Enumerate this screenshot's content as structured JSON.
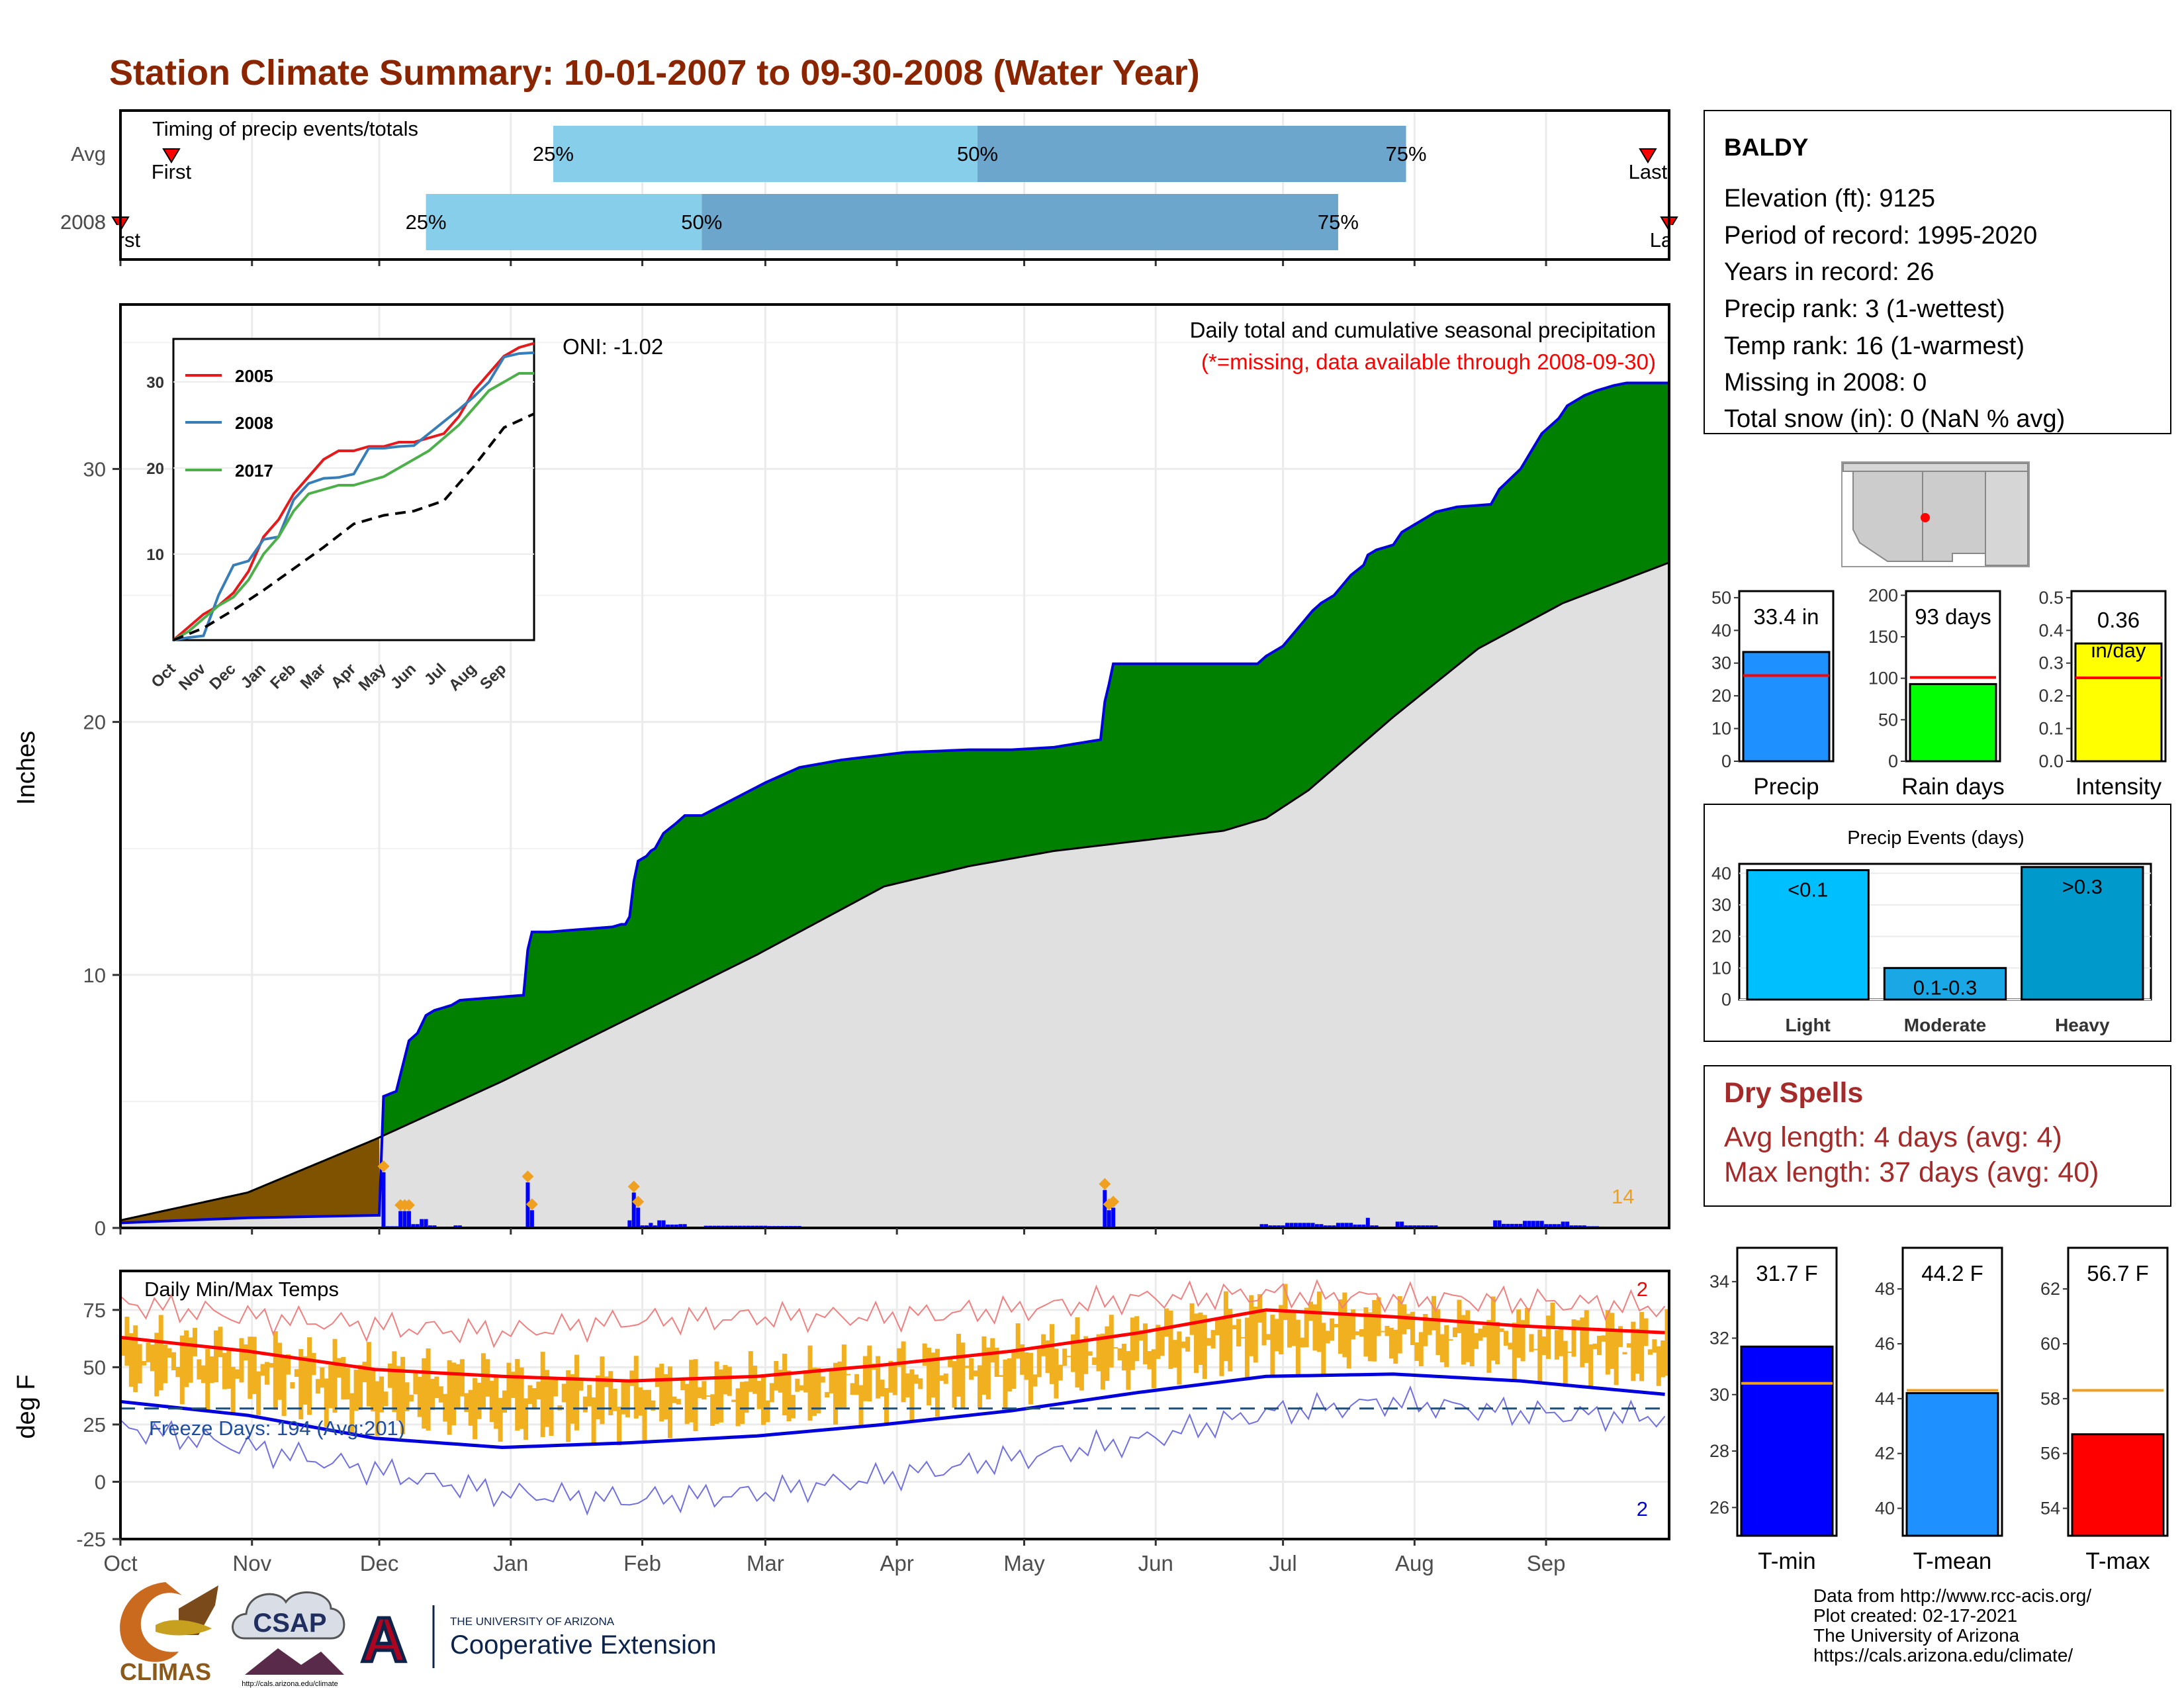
{
  "title": "Station Climate Summary: 10-01-2007 to 09-30-2008 (Water Year)",
  "colors": {
    "title": "#8B2500",
    "green_fill": "#008000",
    "brown_fill": "#7F5200",
    "avg_fill": "#E0E0E0",
    "blue_line": "#0000DD",
    "orange": "#F0B020",
    "red": "#FF0000",
    "light_blue": "#87CEEB",
    "steel_blue": "#6CA6CD",
    "precip_bar": "#1E90FF",
    "rain_bar": "#00FF00",
    "intensity_bar": "#FFFF00",
    "light_bar": "#00BFFF",
    "moderate_bar": "#1AA7E6",
    "heavy_bar": "#0099CC",
    "dry_spells": "#A52A2A"
  },
  "timing": {
    "label": "Timing of precip events/totals",
    "rows": [
      {
        "name": "Avg",
        "first": "First",
        "last": "Last",
        "p25": "25%",
        "p50": "50%",
        "p75": "75%",
        "first_day": 12,
        "q25_day": 102,
        "q50_day": 202,
        "q75_day": 303,
        "last_day": 360
      },
      {
        "name": "2008",
        "first": "First",
        "last": "Last",
        "p25": "25%",
        "p50": "50%",
        "p75": "75%",
        "first_day": 0,
        "q25_day": 72,
        "q50_day": 137,
        "q75_day": 287,
        "last_day": 365
      }
    ]
  },
  "station": {
    "name": "BALDY",
    "lines": [
      "Elevation (ft): 9125",
      "Period of record: 1995-2020",
      "Years in record: 26",
      "Precip rank: 3 (1-wettest)",
      "Temp rank: 16 (1-warmest)",
      "Missing in 2008: 0",
      "Total snow (in): 0 (NaN % avg)"
    ]
  },
  "months": [
    "Oct",
    "Nov",
    "Dec",
    "Jan",
    "Feb",
    "Mar",
    "Apr",
    "May",
    "Jun",
    "Jul",
    "Aug",
    "Sep"
  ],
  "precip_panel": {
    "ylabel": "Inches",
    "yticks": [
      0,
      10,
      20,
      30
    ],
    "ylim": [
      0,
      36.5
    ],
    "header1": "Daily total and cumulative seasonal precipitation",
    "header2": "(*=missing, data available through 2008-09-30)",
    "oni": "ONI: -1.02",
    "extreme_count": "14"
  },
  "inset": {
    "yticks": [
      10,
      20,
      30
    ],
    "ylim": [
      0,
      35
    ],
    "xticks": [
      "Oct",
      "Nov",
      "Dec",
      "Jan",
      "Feb",
      "Mar",
      "Apr",
      "May",
      "Jun",
      "Jul",
      "Aug",
      "Sep"
    ],
    "legend": [
      "2005",
      "2008",
      "2017"
    ]
  },
  "temp_panel": {
    "ylabel": "deg F",
    "yticks": [
      -25,
      0,
      25,
      50,
      75
    ],
    "ylim": [
      -25,
      92
    ],
    "title": "Daily Min/Max Temps",
    "freeze": "Freeze Days: 194 (Avg:201)",
    "freeze_line": 32,
    "record_high_count": "2",
    "record_low_count": "2"
  },
  "precip_bars": {
    "bars": [
      {
        "label": "Precip",
        "value_text": "33.4 in",
        "yticks": [
          0,
          10,
          20,
          30,
          40,
          50
        ],
        "ylim": [
          0,
          52
        ],
        "value": 33.4,
        "avg": 26.2
      },
      {
        "label": "Rain days",
        "value_text": "93 days",
        "yticks": [
          0,
          50,
          100,
          150,
          200
        ],
        "ylim": [
          0,
          205
        ],
        "value": 93,
        "avg": 101
      },
      {
        "label": "Intensity",
        "value_text": "0.36 in/day",
        "yticks": [
          0.0,
          0.1,
          0.2,
          0.3,
          0.4,
          0.5
        ],
        "ylim": [
          0,
          0.52
        ],
        "value": 0.36,
        "avg": 0.255
      }
    ]
  },
  "events": {
    "title": "Precip Events (days)",
    "yticks": [
      0,
      10,
      20,
      30,
      40
    ],
    "ylim": [
      0,
      43
    ],
    "categories": [
      "Light",
      "Moderate",
      "Heavy"
    ],
    "bar_labels": [
      "<0.1",
      "0.1-0.3",
      ">0.3"
    ],
    "values": [
      41,
      10,
      42
    ]
  },
  "dry_spells": {
    "title": "Dry Spells",
    "avg": "Avg length: 4 days (avg: 4)",
    "max": "Max length: 37 days (avg: 40)"
  },
  "temp_bars": {
    "bars": [
      {
        "label": "T-min",
        "value_text": "31.7 F",
        "yticks": [
          26,
          28,
          30,
          32,
          34
        ],
        "ylim": [
          25,
          35.2
        ],
        "value": 31.7,
        "avg": 30.4
      },
      {
        "label": "T-mean",
        "value_text": "44.2 F",
        "yticks": [
          40,
          42,
          44,
          46,
          48
        ],
        "ylim": [
          39,
          49.5
        ],
        "value": 44.2,
        "avg": 44.3
      },
      {
        "label": "T-max",
        "value_text": "56.7 F",
        "yticks": [
          54,
          56,
          58,
          60,
          62
        ],
        "ylim": [
          53,
          63.5
        ],
        "value": 56.7,
        "avg": 58.3
      }
    ]
  },
  "logos": {
    "climas": "CLIMAS",
    "csap": "CSAP",
    "csap_url": "http://cals.arizona.edu/climate",
    "ua_small": "THE UNIVERSITY OF ARIZONA",
    "ua_big": "Cooperative Extension"
  },
  "footer": [
    "Data from http://www.rcc-acis.org/",
    "Plot created: 02-17-2021",
    "The University of Arizona",
    "https://cals.arizona.edu/climate/"
  ],
  "chart_data": [
    {
      "type": "area",
      "title": "Daily total and cumulative seasonal precipitation",
      "ylabel": "Inches",
      "ylim": [
        0,
        36.5
      ],
      "x_unit": "day of water year (Oct 1 = 0)",
      "series": [
        {
          "name": "",
          "x": [
            0,
            30,
            61,
            62,
            65,
            68,
            70,
            72,
            74,
            76,
            78,
            80,
            95,
            96,
            97,
            98,
            99,
            101,
            116,
            118,
            119,
            120,
            121,
            122,
            124,
            125,
            126,
            127,
            128,
            131,
            133,
            135,
            136,
            137,
            152,
            160,
            170,
            185,
            200,
            210,
            220,
            231,
            232,
            233,
            234,
            268,
            270,
            274,
            279,
            281,
            283,
            286,
            288,
            290,
            293,
            294,
            296,
            300,
            302,
            310,
            315,
            323,
            325,
            330,
            335,
            339,
            341,
            345,
            348,
            350,
            352,
            355,
            358,
            365
          ],
          "y": [
            0.2,
            0.4,
            0.5,
            5.2,
            5.4,
            7.4,
            7.7,
            8.4,
            8.6,
            8.7,
            8.8,
            9.0,
            9.2,
            11.0,
            11.7,
            11.7,
            11.7,
            11.7,
            11.9,
            12.0,
            12.0,
            12.3,
            13.7,
            14.5,
            14.7,
            14.9,
            15.0,
            15.3,
            15.6,
            16.0,
            16.3,
            16.3,
            16.3,
            16.3,
            17.6,
            18.2,
            18.5,
            18.8,
            18.9,
            18.9,
            19.0,
            19.3,
            20.8,
            21.5,
            22.3,
            22.3,
            22.6,
            23.0,
            24.0,
            24.4,
            24.7,
            25.0,
            25.4,
            25.8,
            26.2,
            26.6,
            26.8,
            27.0,
            27.5,
            28.3,
            28.5,
            28.6,
            29.2,
            30.0,
            31.4,
            32.0,
            32.5,
            32.9,
            33.1,
            33.2,
            33.3,
            33.4,
            33.4,
            33.4
          ]
        },
        {
          "name": "",
          "x": [
            0,
            30,
            60,
            90,
            120,
            150,
            180,
            200,
            220,
            240,
            260,
            270,
            280,
            300,
            320,
            340,
            365
          ],
          "y": [
            0.3,
            1.4,
            3.5,
            5.8,
            8.3,
            10.8,
            13.5,
            14.3,
            14.9,
            15.3,
            15.7,
            16.2,
            17.3,
            20.2,
            22.9,
            24.7,
            26.3
          ]
        }
      ]
    },
    {
      "type": "line",
      "title": "",
      "ylim": [
        0,
        35
      ],
      "x_unit": "month index (Oct = 0)",
      "series": [
        {
          "name": "2005",
          "x": [
            0,
            0.5,
            1,
            1.5,
            2,
            2.5,
            3,
            3.5,
            4,
            4.5,
            5,
            5.5,
            6,
            6.5,
            7,
            7.5,
            8,
            8.5,
            9,
            9.5,
            10,
            10.5,
            11,
            11.5,
            12
          ],
          "y": [
            0,
            1.5,
            3,
            4,
            5.5,
            8,
            12,
            14,
            17,
            19,
            21,
            22,
            22,
            22.5,
            22.5,
            23,
            23,
            23.5,
            24,
            26,
            29,
            31,
            33,
            34,
            34.5
          ]
        },
        {
          "name": "2008",
          "x": [
            0,
            0.5,
            1,
            1.5,
            2,
            2.5,
            3,
            3.5,
            4,
            4.5,
            5,
            5.5,
            6,
            6.5,
            7,
            7.5,
            8,
            8.5,
            9,
            9.5,
            10,
            10.5,
            11,
            11.5,
            12
          ],
          "y": [
            0,
            0.3,
            0.5,
            5.2,
            8.7,
            9.2,
            11.7,
            12.0,
            16.3,
            18.2,
            18.8,
            18.9,
            19.3,
            22.3,
            22.3,
            22.5,
            22.6,
            24.0,
            25.4,
            26.8,
            28.3,
            30.0,
            32.9,
            33.3,
            33.4
          ]
        },
        {
          "name": "2017",
          "x": [
            0,
            0.5,
            1,
            1.5,
            2,
            2.5,
            3,
            3.5,
            4,
            4.5,
            5,
            5.5,
            6,
            6.5,
            7,
            7.5,
            8,
            8.5,
            9,
            9.5,
            10,
            10.5,
            11,
            11.5,
            12
          ],
          "y": [
            0,
            1,
            2.5,
            4,
            5,
            7,
            10,
            12,
            15,
            17,
            17.5,
            18,
            18,
            18.5,
            19,
            20,
            21,
            22,
            23.5,
            25,
            27,
            29,
            30,
            31,
            31
          ]
        },
        {
          "name": "",
          "x": [
            0,
            1,
            2,
            3,
            4,
            5,
            6,
            7,
            8,
            9,
            10,
            11,
            12
          ],
          "y": [
            0,
            1.4,
            3.5,
            5.8,
            8.3,
            10.8,
            13.5,
            14.5,
            15.0,
            16.2,
            20.2,
            24.7,
            26.3
          ]
        }
      ]
    },
    {
      "type": "line",
      "title": "Daily Min/Max Temps",
      "ylabel": "deg F",
      "ylim": [
        -25,
        92
      ],
      "x_unit": "day of water year (Oct 1 = 0)",
      "series": [
        {
          "name": "",
          "x": [
            0,
            30,
            60,
            90,
            120,
            150,
            180,
            210,
            240,
            270,
            300,
            330,
            365
          ],
          "y": [
            63,
            57,
            49,
            46,
            44,
            46,
            51,
            57,
            65,
            75,
            72,
            68,
            65
          ]
        },
        {
          "name": "",
          "x": [
            0,
            30,
            60,
            90,
            120,
            150,
            180,
            210,
            240,
            270,
            300,
            330,
            365
          ],
          "y": [
            35,
            29,
            19,
            15,
            17,
            20,
            25,
            31,
            39,
            46,
            47,
            44,
            38
          ]
        },
        {
          "name": "",
          "x": [
            0,
            30,
            60,
            90,
            120,
            150,
            180,
            210,
            240,
            270,
            300,
            330,
            365
          ],
          "y": [
            78,
            72,
            68,
            65,
            70,
            72,
            72,
            75,
            80,
            82,
            80,
            79,
            76
          ]
        },
        {
          "name": "",
          "x": [
            0,
            30,
            60,
            90,
            120,
            150,
            180,
            210,
            240,
            270,
            300,
            330,
            365
          ],
          "y": [
            24,
            15,
            5,
            -5,
            -8,
            -5,
            2,
            10,
            18,
            30,
            35,
            30,
            28
          ]
        }
      ]
    }
  ]
}
